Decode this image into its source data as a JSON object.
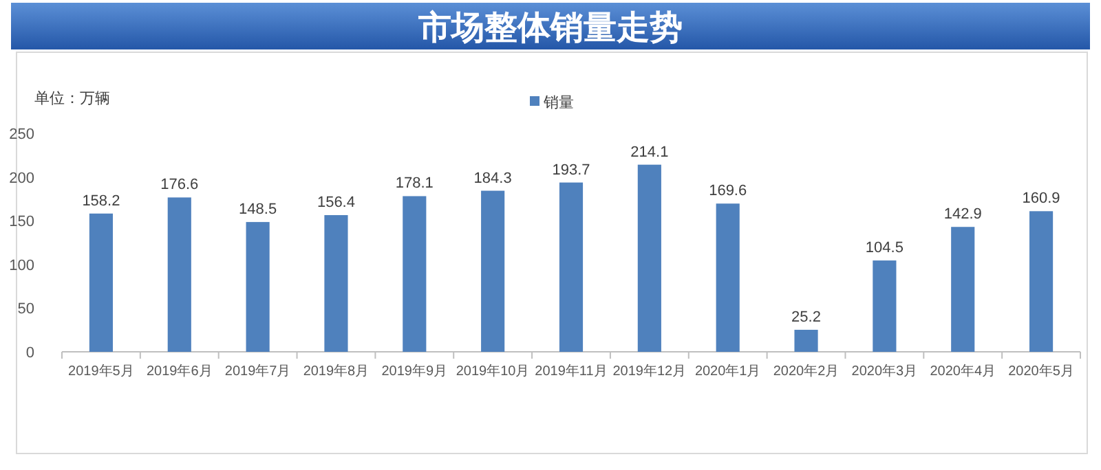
{
  "chart_data": {
    "type": "bar",
    "title": "市场整体销量走势",
    "ylabel": "单位：万辆",
    "categories": [
      "2019年5月",
      "2019年6月",
      "2019年7月",
      "2019年8月",
      "2019年9月",
      "2019年10月",
      "2019年11月",
      "2019年12月",
      "2020年1月",
      "2020年2月",
      "2020年3月",
      "2020年4月",
      "2020年5月"
    ],
    "series": [
      {
        "name": "销量",
        "color": "#4f81bd",
        "values": [
          158.2,
          176.6,
          148.5,
          156.4,
          178.1,
          184.3,
          193.7,
          214.1,
          169.6,
          25.2,
          104.5,
          142.9,
          160.9
        ]
      }
    ],
    "ylim": [
      0,
      250
    ],
    "yticks": [
      0,
      50,
      100,
      150,
      200,
      250
    ],
    "data_labels": true,
    "legend": "top",
    "grid": false
  }
}
